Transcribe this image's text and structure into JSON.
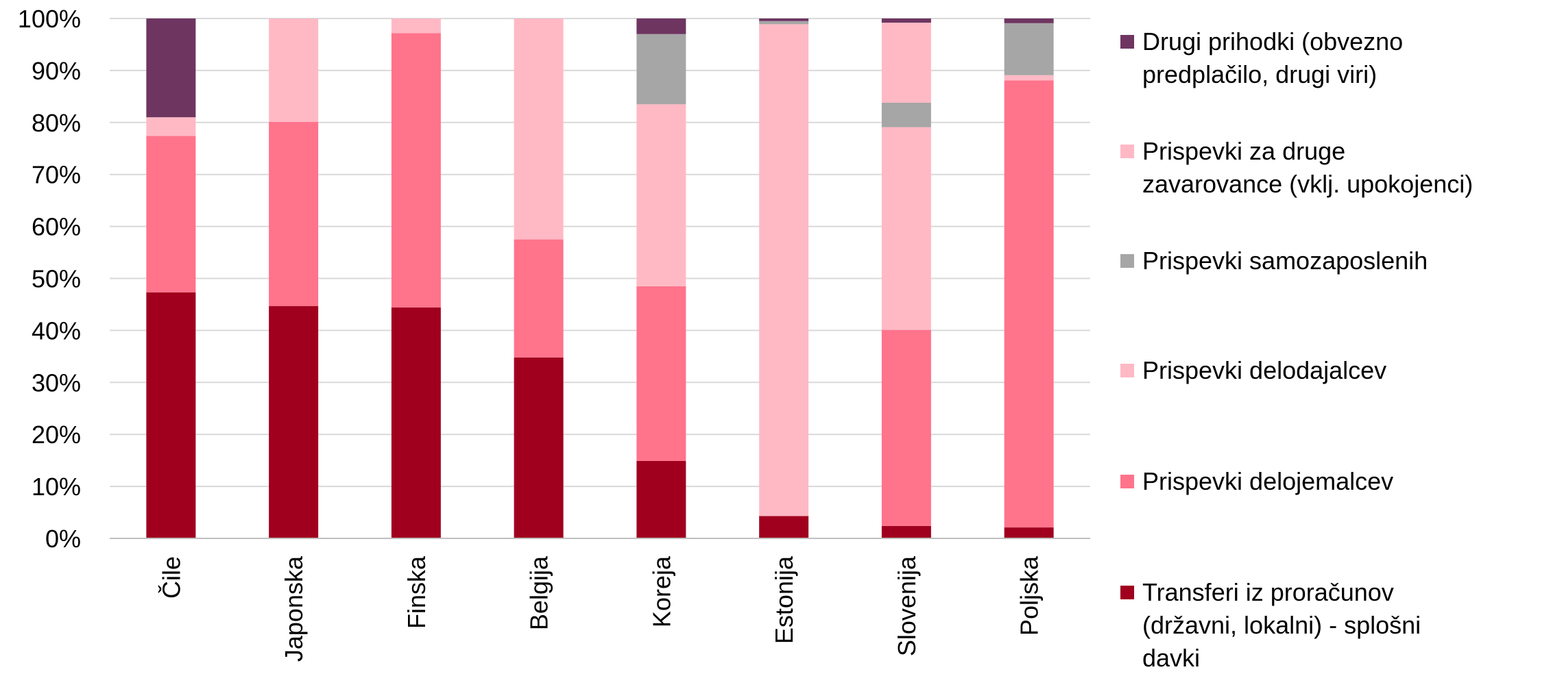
{
  "chart_data": {
    "type": "bar",
    "stacked": true,
    "percent": true,
    "categories": [
      "Čile",
      "Japonska",
      "Finska",
      "Belgija",
      "Koreja",
      "Estonija",
      "Slovenija",
      "Poljska"
    ],
    "series": [
      {
        "name": "Transferi iz proračunov (državni, lokalni) - splošni davki",
        "color": "#a0001e",
        "values": [
          47.3,
          44.7,
          44.4,
          34.8,
          14.9,
          4.3,
          2.4,
          2.1
        ]
      },
      {
        "name": "Prispevki delojemalcev",
        "color": "#ff738b",
        "values": [
          30.1,
          35.4,
          52.8,
          22.7,
          33.6,
          0.0,
          37.7,
          86.0
        ]
      },
      {
        "name": "Prispevki delodajalcev",
        "color": "#ffb9c5",
        "values": [
          3.6,
          19.9,
          2.8,
          42.5,
          35.0,
          94.6,
          39.0,
          1.0
        ]
      },
      {
        "name": "Prispevki samozaposlenih",
        "color": "#a6a6a6",
        "values": [
          0.0,
          0.0,
          0.0,
          0.0,
          13.5,
          0.6,
          4.7,
          10.0
        ]
      },
      {
        "name": "Prispevki za druge zavarovance (vklj. upokojenci)",
        "color": "#ffb9c5",
        "values": [
          0.0,
          0.0,
          0.0,
          0.0,
          0.0,
          0.0,
          15.4,
          0.0
        ]
      },
      {
        "name": "Drugi prihodki (obvezno predplačilo, drugi viri)",
        "color": "#6e3561",
        "values": [
          19.0,
          0.0,
          0.0,
          0.0,
          3.0,
          0.5,
          0.8,
          0.9
        ]
      }
    ],
    "yticks": [
      "0%",
      "10%",
      "20%",
      "30%",
      "40%",
      "50%",
      "60%",
      "70%",
      "80%",
      "90%",
      "100%"
    ],
    "ylim": [
      0,
      100
    ],
    "grid": true,
    "legend_position": "right",
    "legend_order": [
      [
        "Drugi prihodki (obvezno",
        "predplačilo, drugi viri)"
      ],
      [
        "Prispevki za druge",
        "zavarovance (vklj. upokojenci)"
      ],
      [
        "Prispevki samozaposlenih"
      ],
      [
        "Prispevki delodajalcev"
      ],
      [
        "Prispevki delojemalcev"
      ],
      [
        "Transferi iz proračunov",
        "(državni, lokalni) - splošni",
        "davki"
      ]
    ],
    "gridline_color": "#d9d9d9"
  }
}
